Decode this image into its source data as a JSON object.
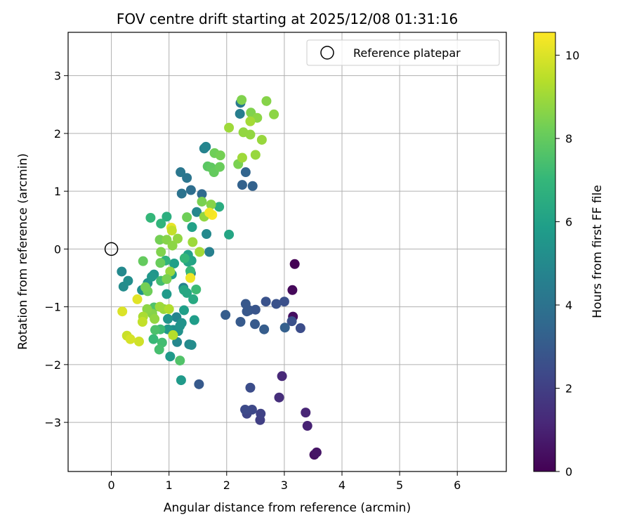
{
  "chart_data": {
    "type": "scatter",
    "title": "FOV centre drift starting at 2025/12/08 01:31:16",
    "xlabel": "Angular distance from reference (arcmin)",
    "ylabel": "Rotation from reference (arcmin)",
    "xlim": [
      -0.75,
      6.85
    ],
    "ylim": [
      -3.85,
      3.75
    ],
    "xticks": [
      0,
      1,
      2,
      3,
      4,
      5,
      6
    ],
    "yticks": [
      -3,
      -2,
      -1,
      0,
      1,
      2,
      3
    ],
    "grid": true,
    "legend": {
      "location": "upper-right",
      "label": "Reference platepar"
    },
    "reference_point": {
      "x": 0,
      "y": 0
    },
    "colorbar": {
      "label": "Hours from first FF file",
      "colormap": "viridis",
      "range": [
        0,
        10.55
      ],
      "ticks": [
        0,
        2,
        4,
        6,
        8,
        10
      ],
      "stops": [
        "#440154",
        "#482878",
        "#3e4989",
        "#31688e",
        "#26828e",
        "#1f9e89",
        "#35b779",
        "#6ece58",
        "#b5de2b",
        "#fde725"
      ]
    },
    "points": [
      [
        3.18,
        -0.26,
        0.0
      ],
      [
        3.14,
        -0.71,
        0.2
      ],
      [
        3.15,
        -1.17,
        0.4
      ],
      [
        3.52,
        -3.56,
        0.5
      ],
      [
        3.56,
        -3.52,
        0.6
      ],
      [
        3.4,
        -3.06,
        1.0
      ],
      [
        3.37,
        -2.83,
        1.1
      ],
      [
        2.96,
        -2.2,
        1.2
      ],
      [
        2.91,
        -2.57,
        1.4
      ],
      [
        2.58,
        -2.96,
        2.0
      ],
      [
        2.59,
        -2.85,
        2.1
      ],
      [
        2.35,
        -2.85,
        2.2
      ],
      [
        2.44,
        -2.78,
        2.3
      ],
      [
        2.32,
        -2.78,
        2.4
      ],
      [
        2.41,
        -2.4,
        2.5
      ],
      [
        3.28,
        -1.37,
        2.5
      ],
      [
        3.13,
        -1.25,
        2.6
      ],
      [
        3.0,
        -0.91,
        2.6
      ],
      [
        2.86,
        -0.95,
        2.7
      ],
      [
        2.68,
        -0.91,
        2.7
      ],
      [
        2.5,
        -1.05,
        2.8
      ],
      [
        2.39,
        -1.06,
        2.8
      ],
      [
        2.35,
        -1.08,
        2.9
      ],
      [
        2.33,
        -0.95,
        2.9
      ],
      [
        2.49,
        -1.3,
        3.0
      ],
      [
        2.24,
        -1.26,
        3.0
      ],
      [
        1.98,
        -1.14,
        3.1
      ],
      [
        2.65,
        -1.39,
        3.1
      ],
      [
        3.01,
        -1.36,
        3.2
      ],
      [
        1.52,
        -2.34,
        3.0
      ],
      [
        2.45,
        1.09,
        3.3
      ],
      [
        2.27,
        1.11,
        3.3
      ],
      [
        2.33,
        1.33,
        3.4
      ],
      [
        1.57,
        0.95,
        3.6
      ],
      [
        1.38,
        1.02,
        3.8
      ],
      [
        1.22,
        0.96,
        4.0
      ],
      [
        1.31,
        1.23,
        4.1
      ],
      [
        1.2,
        1.33,
        4.2
      ],
      [
        2.24,
        2.53,
        4.3
      ],
      [
        2.23,
        2.34,
        4.5
      ],
      [
        1.61,
        1.74,
        4.7
      ],
      [
        1.64,
        1.77,
        4.8
      ],
      [
        1.48,
        0.64,
        4.9
      ],
      [
        1.65,
        0.26,
        5.0
      ],
      [
        1.7,
        -0.05,
        4.6
      ],
      [
        1.38,
        -0.42,
        4.6
      ],
      [
        1.25,
        -0.67,
        4.7
      ],
      [
        1.13,
        -1.18,
        4.8
      ],
      [
        1.14,
        -1.61,
        4.9
      ],
      [
        1.35,
        -1.65,
        5.0
      ],
      [
        1.39,
        -1.66,
        5.1
      ],
      [
        1.07,
        -1.4,
        5.2
      ],
      [
        1.16,
        -1.42,
        5.3
      ],
      [
        1.22,
        -1.28,
        5.4
      ],
      [
        1.19,
        -1.33,
        5.4
      ],
      [
        0.98,
        -1.21,
        5.5
      ],
      [
        0.98,
        -1.39,
        5.6
      ],
      [
        1.02,
        -1.86,
        5.7
      ],
      [
        1.21,
        -2.27,
        5.7
      ],
      [
        1.44,
        -1.23,
        5.8
      ],
      [
        1.26,
        -1.06,
        5.9
      ],
      [
        0.18,
        -0.39,
        5.0
      ],
      [
        0.21,
        -0.65,
        5.1
      ],
      [
        0.29,
        -0.55,
        5.2
      ],
      [
        0.53,
        -0.71,
        5.3
      ],
      [
        0.63,
        -0.59,
        5.4
      ],
      [
        0.74,
        -0.44,
        5.5
      ],
      [
        0.7,
        -0.48,
        5.6
      ],
      [
        0.96,
        -0.78,
        5.7
      ],
      [
        1.05,
        -0.44,
        5.8
      ],
      [
        1.09,
        -0.25,
        5.9
      ],
      [
        1.33,
        -0.1,
        6.0
      ],
      [
        1.39,
        -0.2,
        6.1
      ],
      [
        1.33,
        -0.22,
        6.2
      ],
      [
        1.26,
        -0.71,
        6.3
      ],
      [
        2.04,
        0.25,
        6.2
      ],
      [
        1.4,
        0.38,
        6.0
      ],
      [
        1.31,
        -0.76,
        6.3
      ],
      [
        1.42,
        -0.87,
        6.4
      ],
      [
        1.87,
        0.73,
        6.5
      ],
      [
        0.96,
        0.56,
        6.6
      ],
      [
        0.68,
        0.54,
        7.0
      ],
      [
        0.86,
        0.44,
        6.9
      ],
      [
        0.94,
        -0.2,
        6.8
      ],
      [
        1.27,
        -0.16,
        7.0
      ],
      [
        1.37,
        -0.38,
        7.1
      ],
      [
        1.47,
        -0.7,
        7.2
      ],
      [
        0.86,
        -0.55,
        7.3
      ],
      [
        0.73,
        -1.56,
        7.1
      ],
      [
        0.85,
        -1.39,
        7.2
      ],
      [
        0.88,
        -1.62,
        7.3
      ],
      [
        0.83,
        -1.74,
        7.4
      ],
      [
        0.76,
        -1.4,
        7.5
      ],
      [
        1.19,
        -1.93,
        7.6
      ],
      [
        0.74,
        -1.01,
        7.6
      ],
      [
        1.67,
        1.43,
        7.8
      ],
      [
        1.73,
        1.41,
        7.9
      ],
      [
        1.78,
        1.33,
        8.0
      ],
      [
        1.88,
        1.42,
        8.1
      ],
      [
        1.79,
        1.66,
        8.2
      ],
      [
        1.89,
        1.62,
        8.3
      ],
      [
        2.2,
        1.47,
        8.4
      ],
      [
        2.26,
        2.58,
        8.5
      ],
      [
        2.42,
        2.36,
        8.5
      ],
      [
        2.69,
        2.56,
        8.6
      ],
      [
        2.82,
        2.33,
        8.7
      ],
      [
        2.53,
        2.27,
        8.7
      ],
      [
        2.29,
        2.02,
        8.8
      ],
      [
        2.41,
        1.98,
        8.8
      ],
      [
        2.61,
        1.89,
        8.9
      ],
      [
        2.5,
        1.63,
        8.9
      ],
      [
        2.27,
        1.58,
        9.0
      ],
      [
        2.04,
        2.1,
        9.0
      ],
      [
        2.41,
        2.21,
        9.1
      ],
      [
        1.31,
        0.55,
        8.2
      ],
      [
        1.57,
        0.82,
        8.4
      ],
      [
        1.73,
        0.77,
        8.6
      ],
      [
        1.61,
        0.56,
        8.8
      ],
      [
        0.84,
        0.16,
        8.3
      ],
      [
        0.86,
        -0.05,
        8.5
      ],
      [
        0.96,
        0.16,
        8.6
      ],
      [
        1.06,
        0.06,
        8.7
      ],
      [
        1.15,
        0.18,
        8.8
      ],
      [
        1.02,
        -0.39,
        8.9
      ],
      [
        1.41,
        0.12,
        9.0
      ],
      [
        1.53,
        -0.05,
        9.1
      ],
      [
        0.55,
        -0.21,
        8.0
      ],
      [
        0.85,
        -0.24,
        8.1
      ],
      [
        0.63,
        -0.73,
        8.2
      ],
      [
        0.59,
        -0.66,
        8.3
      ],
      [
        0.96,
        -0.52,
        8.4
      ],
      [
        0.71,
        -1.12,
        8.6
      ],
      [
        0.62,
        -1.04,
        8.7
      ],
      [
        0.75,
        -1.21,
        8.8
      ],
      [
        0.91,
        -1.04,
        8.9
      ],
      [
        0.84,
        -1.0,
        9.0
      ],
      [
        0.55,
        -1.17,
        9.2
      ],
      [
        1.0,
        -1.04,
        9.3
      ],
      [
        1.07,
        -1.49,
        9.4
      ],
      [
        0.54,
        -1.26,
        9.6
      ],
      [
        0.27,
        -1.5,
        9.7
      ],
      [
        0.48,
        -1.6,
        9.8
      ],
      [
        0.33,
        -1.56,
        9.9
      ],
      [
        0.19,
        -1.08,
        10.0
      ],
      [
        0.45,
        -0.87,
        10.1
      ],
      [
        1.04,
        0.37,
        10.2
      ],
      [
        1.37,
        -0.5,
        10.3
      ],
      [
        1.05,
        0.32,
        9.6
      ],
      [
        1.75,
        0.59,
        10.5
      ],
      [
        1.7,
        0.63,
        10.4
      ]
    ]
  }
}
